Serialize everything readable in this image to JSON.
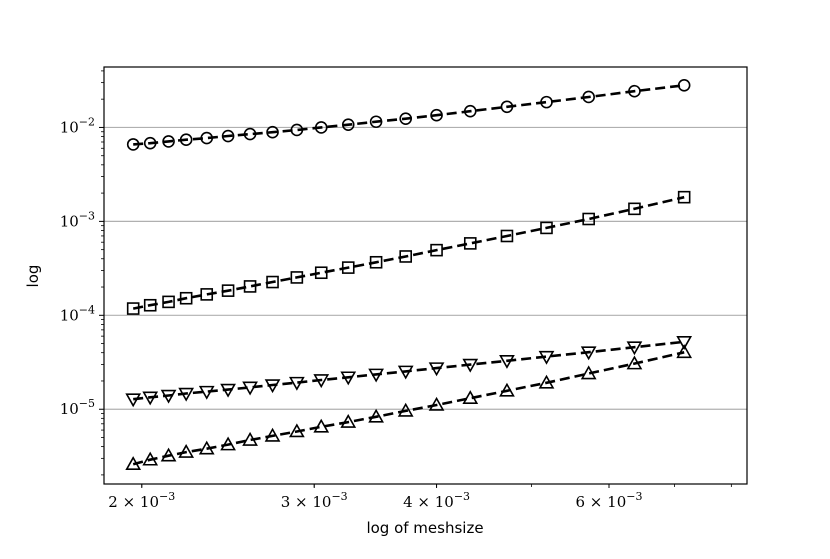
{
  "chart_data": {
    "type": "line",
    "title": "",
    "xlabel": "log of meshsize",
    "ylabel": "log",
    "xscale": "log",
    "yscale": "log",
    "xlim": [
      0.00183,
      0.0083
    ],
    "ylim": [
      1.6e-06,
      0.044
    ],
    "grid": "horizontal major gridlines at y decades",
    "x_ticks": [
      {
        "value": 0.002,
        "label": "2 × 10^-3"
      },
      {
        "value": 0.003,
        "label": "3 × 10^-3"
      },
      {
        "value": 0.004,
        "label": "4 × 10^-3"
      },
      {
        "value": 0.006,
        "label": "6 × 10^-3"
      }
    ],
    "y_ticks": [
      {
        "value": 1e-05,
        "label": "10^-5"
      },
      {
        "value": 0.0001,
        "label": "10^-4"
      },
      {
        "value": 0.001,
        "label": "10^-3"
      },
      {
        "value": 0.01,
        "label": "10^-2"
      }
    ],
    "x": [
      0.00196,
      0.00204,
      0.00213,
      0.00222,
      0.00233,
      0.00245,
      0.00258,
      0.00272,
      0.00288,
      0.00305,
      0.00325,
      0.00347,
      0.00372,
      0.004,
      0.00433,
      0.00472,
      0.00518,
      0.00572,
      0.00637,
      0.00716
    ],
    "series": [
      {
        "marker": "circle",
        "values": [
          0.0066,
          0.0068,
          0.0071,
          0.0074,
          0.0077,
          0.0081,
          0.0085,
          0.0089,
          0.0094,
          0.01,
          0.0107,
          0.0115,
          0.0124,
          0.0135,
          0.0149,
          0.0166,
          0.0186,
          0.0211,
          0.0243,
          0.0281
        ]
      },
      {
        "marker": "square",
        "values": [
          0.000118,
          0.000128,
          0.000139,
          0.000152,
          0.000167,
          0.000183,
          0.000203,
          0.000226,
          0.000253,
          0.000284,
          0.000322,
          0.000367,
          0.000423,
          0.000494,
          0.000583,
          0.000699,
          0.000852,
          0.00106,
          0.00136,
          0.00181
        ]
      },
      {
        "marker": "triangle-down",
        "values": [
          1.28e-05,
          1.34e-05,
          1.4e-05,
          1.47e-05,
          1.54e-05,
          1.62e-05,
          1.71e-05,
          1.81e-05,
          1.92e-05,
          2.05e-05,
          2.19e-05,
          2.35e-05,
          2.53e-05,
          2.74e-05,
          2.99e-05,
          3.28e-05,
          3.63e-05,
          4.05e-05,
          4.58e-05,
          5.22e-05
        ]
      },
      {
        "marker": "triangle-up",
        "values": [
          2.6e-06,
          2.9e-06,
          3.2e-06,
          3.5e-06,
          3.8e-06,
          4.2e-06,
          4.7e-06,
          5.2e-06,
          5.8e-06,
          6.5e-06,
          7.3e-06,
          8.3e-06,
          9.6e-06,
          1.11e-05,
          1.31e-05,
          1.57e-05,
          1.91e-05,
          2.4e-05,
          3.06e-05,
          4.04e-05
        ]
      }
    ]
  }
}
